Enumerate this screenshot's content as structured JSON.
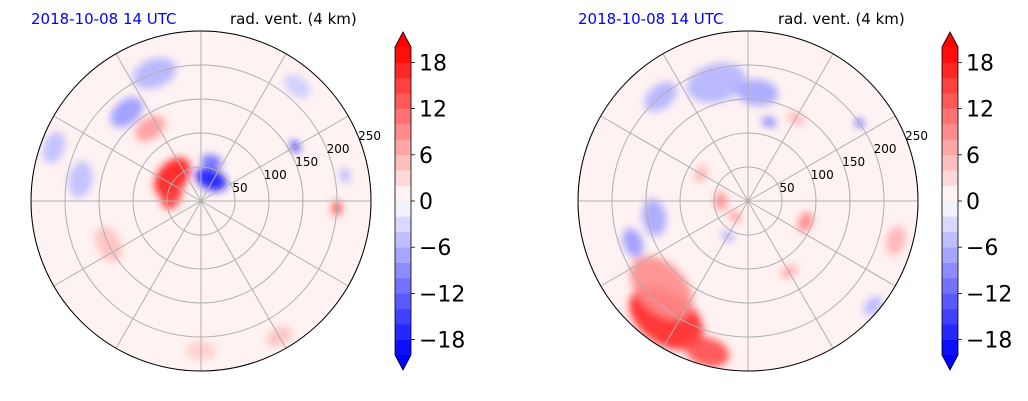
{
  "chart_data": [
    {
      "type": "heatmap",
      "projection": "polar",
      "title_left": "2018-10-08 14 UTC",
      "title_right": "rad. vent. (4 km)",
      "radial_ticks": [
        50,
        100,
        150,
        200,
        250
      ],
      "r_max": 250,
      "angular_gridlines_deg": [
        0,
        30,
        60,
        90,
        120,
        150,
        180,
        210,
        240,
        270,
        300,
        330
      ],
      "grid": true,
      "colorbar": {
        "ticks": [
          18,
          12,
          6,
          0,
          -6,
          -12,
          -18
        ],
        "tick_labels": [
          "18",
          "12",
          "6",
          "0",
          "−6",
          "−12",
          "−18"
        ],
        "range": [
          -20,
          20
        ],
        "extend": "both",
        "colormap": "bwr",
        "color_low": "#0000ff",
        "color_mid": "#ffffff",
        "color_high": "#ff0000"
      },
      "features": [
        {
          "r": 55,
          "theta": 140,
          "value": 18,
          "size": 30
        },
        {
          "r": 45,
          "theta": 165,
          "value": 16,
          "size": 22
        },
        {
          "r": 35,
          "theta": 65,
          "value": -18,
          "size": 22
        },
        {
          "r": 60,
          "theta": 75,
          "value": -12,
          "size": 14
        },
        {
          "r": 130,
          "theta": 125,
          "value": 8,
          "size": 22
        },
        {
          "r": 170,
          "theta": 130,
          "value": -8,
          "size": 25
        },
        {
          "r": 200,
          "theta": 110,
          "value": -6,
          "size": 30
        },
        {
          "r": 160,
          "theta": 30,
          "value": -18,
          "size": 8
        },
        {
          "r": 215,
          "theta": 10,
          "value": -6,
          "size": 10
        },
        {
          "r": 200,
          "theta": -3,
          "value": 15,
          "size": 10
        },
        {
          "r": 230,
          "theta": 160,
          "value": -5,
          "size": 22
        },
        {
          "r": 180,
          "theta": 170,
          "value": -5,
          "size": 25
        },
        {
          "r": 150,
          "theta": 205,
          "value": 5,
          "size": 25
        },
        {
          "r": 220,
          "theta": 270,
          "value": 4,
          "size": 20
        },
        {
          "r": 230,
          "theta": 300,
          "value": 5,
          "size": 18
        },
        {
          "r": 220,
          "theta": 50,
          "value": -4,
          "size": 20
        }
      ]
    },
    {
      "type": "heatmap",
      "projection": "polar",
      "title_left": "2018-10-08 14 UTC",
      "title_right": "rad. vent. (4 km)",
      "radial_ticks": [
        50,
        100,
        150,
        200,
        250
      ],
      "r_max": 250,
      "angular_gridlines_deg": [
        0,
        30,
        60,
        90,
        120,
        150,
        180,
        210,
        240,
        270,
        300,
        330
      ],
      "grid": true,
      "colorbar": {
        "ticks": [
          18,
          12,
          6,
          0,
          -6,
          -12,
          -18
        ],
        "tick_labels": [
          "18",
          "12",
          "6",
          "0",
          "−6",
          "−12",
          "−18"
        ],
        "range": [
          -20,
          20
        ],
        "extend": "both",
        "colormap": "bwr",
        "color_low": "#0000ff",
        "color_mid": "#ffffff",
        "color_high": "#ff0000"
      },
      "features": [
        {
          "r": 210,
          "theta": 235,
          "value": 17,
          "size": 55
        },
        {
          "r": 180,
          "theta": 225,
          "value": 9,
          "size": 50
        },
        {
          "r": 230,
          "theta": 255,
          "value": 14,
          "size": 30
        },
        {
          "r": 140,
          "theta": 190,
          "value": -7,
          "size": 25
        },
        {
          "r": 180,
          "theta": 200,
          "value": -8,
          "size": 20
        },
        {
          "r": 180,
          "theta": 105,
          "value": -6,
          "size": 40
        },
        {
          "r": 160,
          "theta": 85,
          "value": -7,
          "size": 28
        },
        {
          "r": 200,
          "theta": 130,
          "value": -6,
          "size": 25
        },
        {
          "r": 120,
          "theta": 75,
          "value": -10,
          "size": 10
        },
        {
          "r": 140,
          "theta": 60,
          "value": 6,
          "size": 12
        },
        {
          "r": 40,
          "theta": 180,
          "value": 10,
          "size": 12
        },
        {
          "r": 30,
          "theta": 230,
          "value": 8,
          "size": 10
        },
        {
          "r": 90,
          "theta": -20,
          "value": 10,
          "size": 14
        },
        {
          "r": 120,
          "theta": -60,
          "value": 7,
          "size": 12
        },
        {
          "r": 200,
          "theta": 35,
          "value": -18,
          "size": 6
        },
        {
          "r": 225,
          "theta": -15,
          "value": 6,
          "size": 20
        },
        {
          "r": 240,
          "theta": -40,
          "value": -6,
          "size": 15
        },
        {
          "r": 80,
          "theta": 150,
          "value": 6,
          "size": 12
        },
        {
          "r": 60,
          "theta": 240,
          "value": -6,
          "size": 10
        }
      ]
    }
  ]
}
